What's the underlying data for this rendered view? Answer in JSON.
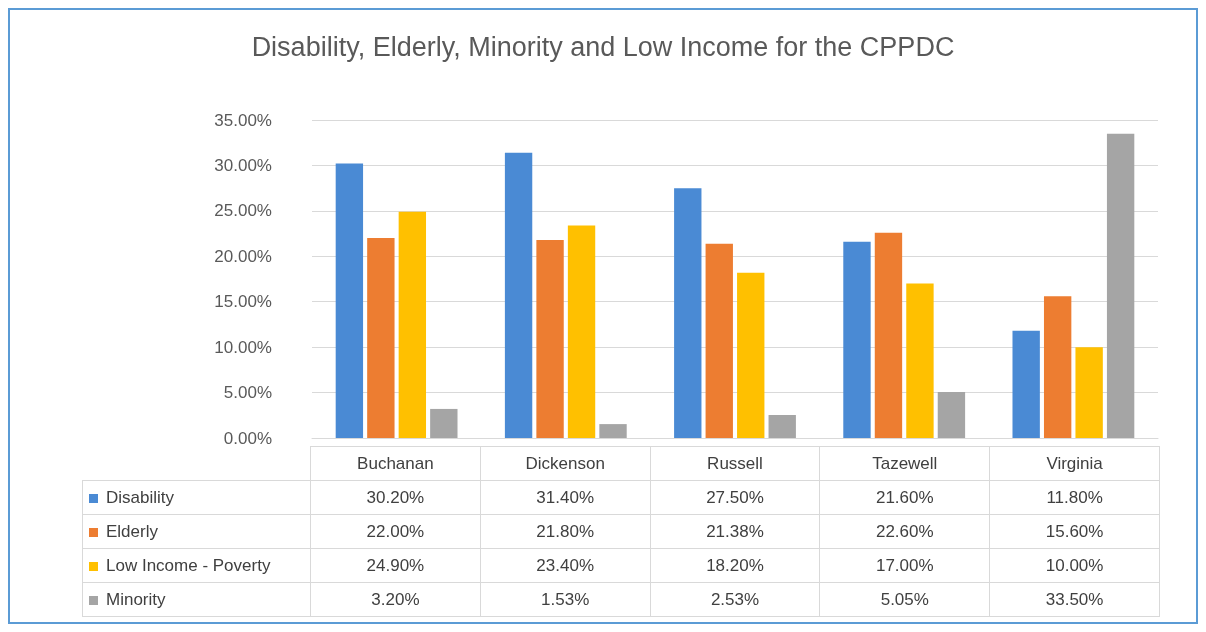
{
  "chart_data": {
    "type": "bar",
    "title": "Disability, Elderly, Minority and Low Income for the CPPDC",
    "categories": [
      "Buchanan",
      "Dickenson",
      "Russell",
      "Tazewell",
      "Virginia"
    ],
    "series": [
      {
        "name": "Disability",
        "color": "#4a8ad4",
        "values": [
          30.2,
          31.4,
          27.5,
          21.6,
          11.8
        ],
        "value_labels": [
          "30.20%",
          "31.40%",
          "27.50%",
          "21.60%",
          "11.80%"
        ]
      },
      {
        "name": "Elderly",
        "color": "#ed7d31",
        "values": [
          22.0,
          21.8,
          21.38,
          22.6,
          15.6
        ],
        "value_labels": [
          "22.00%",
          "21.80%",
          "21.38%",
          "22.60%",
          "15.60%"
        ]
      },
      {
        "name": "Low Income - Poverty",
        "color": "#ffc000",
        "values": [
          24.9,
          23.4,
          18.2,
          17.0,
          10.0
        ],
        "value_labels": [
          "24.90%",
          "23.40%",
          "18.20%",
          "17.00%",
          "10.00%"
        ]
      },
      {
        "name": "Minority",
        "color": "#a5a5a5",
        "values": [
          3.2,
          1.53,
          2.53,
          5.05,
          33.5
        ],
        "value_labels": [
          "3.20%",
          "1.53%",
          "2.53%",
          "5.05%",
          "33.50%"
        ]
      }
    ],
    "ylim": [
      0,
      35
    ],
    "yticks": [
      {
        "value": 0,
        "label": "0.00%"
      },
      {
        "value": 5,
        "label": "5.00%"
      },
      {
        "value": 10,
        "label": "10.00%"
      },
      {
        "value": 15,
        "label": "15.00%"
      },
      {
        "value": 20,
        "label": "20.00%"
      },
      {
        "value": 25,
        "label": "25.00%"
      },
      {
        "value": 30,
        "label": "30.00%"
      },
      {
        "value": 35,
        "label": "35.00%"
      }
    ],
    "grid": "y",
    "legend": "bottom"
  }
}
